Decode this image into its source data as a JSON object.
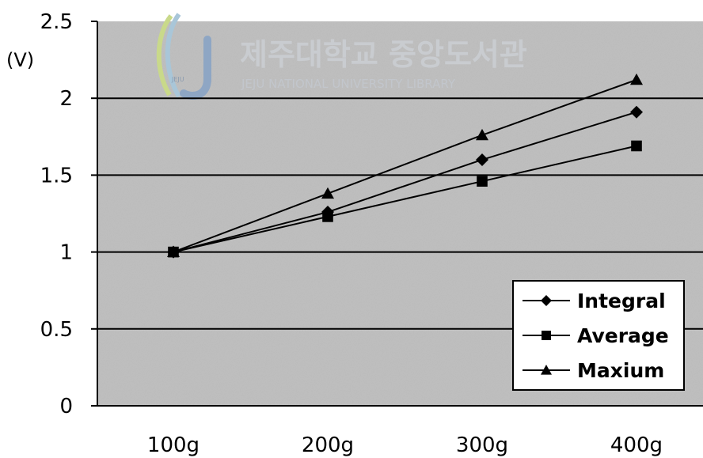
{
  "chart_data": {
    "type": "line",
    "categories": [
      "100g",
      "200g",
      "300g",
      "400g"
    ],
    "unit_label": "(V)",
    "ylim": [
      0,
      2.5
    ],
    "yticks": [
      "0",
      "0.5",
      "1",
      "1.5",
      "2",
      "2.5"
    ],
    "ytick_values": [
      0,
      0.5,
      1,
      1.5,
      2,
      2.5
    ],
    "grid": true,
    "legend_position": "bottom-right",
    "series": [
      {
        "name": "Integral",
        "marker": "diamond",
        "values": [
          1.0,
          1.26,
          1.6,
          1.91
        ]
      },
      {
        "name": "Average",
        "marker": "square",
        "values": [
          1.0,
          1.23,
          1.46,
          1.69
        ]
      },
      {
        "name": "Maxium",
        "marker": "triangle",
        "values": [
          1.0,
          1.38,
          1.76,
          2.12
        ]
      }
    ]
  },
  "watermark": {
    "korean": "제주대학교 중앙도서관",
    "english": "JEJU NATIONAL UNIVERSITY  LIBRARY",
    "logo_text": "JEJU"
  },
  "colors": {
    "plot_background": "#c0c0c0",
    "line": "#000000",
    "gridline": "#000000"
  }
}
